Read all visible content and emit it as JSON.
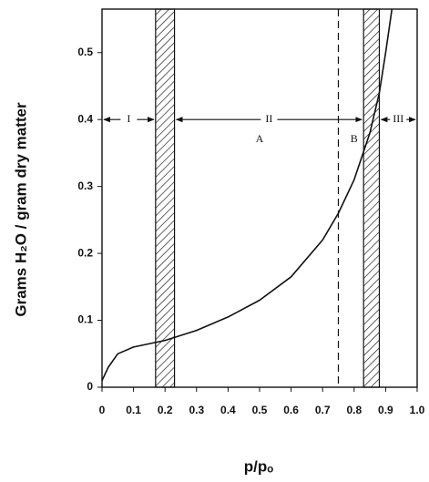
{
  "chart_data": {
    "type": "line",
    "x_label": "p/pₒ",
    "y_label": "Grams H₂O / gram dry matter",
    "xlim": [
      0,
      1
    ],
    "ylim": [
      0,
      0.565
    ],
    "xticks": [
      0,
      0.1,
      0.2,
      0.3,
      0.4,
      0.5,
      0.6,
      0.7,
      0.8,
      0.9,
      {
        "value": 1,
        "label": "1.0"
      }
    ],
    "yticks": [
      0,
      0.1,
      0.2,
      0.3,
      0.4,
      0.5
    ],
    "x": [
      0,
      0.02,
      0.05,
      0.1,
      0.2,
      0.3,
      0.4,
      0.5,
      0.6,
      0.7,
      0.75,
      0.8,
      0.85,
      0.88,
      0.9,
      0.92
    ],
    "y": [
      0.01,
      0.03,
      0.05,
      0.06,
      0.07,
      0.085,
      0.105,
      0.13,
      0.165,
      0.22,
      0.26,
      0.31,
      0.38,
      0.44,
      0.5,
      0.565
    ],
    "color": "#111111",
    "bands": [
      [
        0.17,
        0.23
      ],
      [
        0.83,
        0.88
      ]
    ],
    "dashed_line_x": 0.75,
    "regions_y": 0.4,
    "regions": [
      {
        "label": "I",
        "from": 0,
        "to": 0.17
      },
      {
        "label": "II",
        "from": 0.23,
        "to": 0.83
      },
      {
        "label": "III",
        "from": 0.88,
        "to": 1
      }
    ],
    "annotations": [
      {
        "label": "A",
        "x": 0.5,
        "y": 0.37
      },
      {
        "label": "B",
        "x": 0.8,
        "y": 0.37
      }
    ]
  }
}
